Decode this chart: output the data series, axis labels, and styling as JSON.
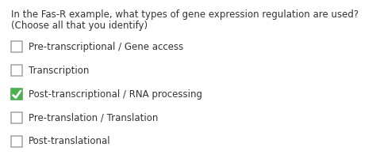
{
  "background_color": "#ffffff",
  "question_line1": "In the Fas-R example, what types of gene expression regulation are used?",
  "question_line2": "(Choose all that you identify)",
  "options": [
    {
      "label": "Pre-transcriptional / Gene access",
      "checked": false
    },
    {
      "label": "Transcription",
      "checked": false
    },
    {
      "label": "Post-transcriptional / RNA processing",
      "checked": true
    },
    {
      "label": "Pre-translation / Translation",
      "checked": false
    },
    {
      "label": "Post-translational",
      "checked": false
    }
  ],
  "checkbox_color_unchecked": "#ffffff",
  "checkbox_border_unchecked": "#aaaaaa",
  "checkbox_color_checked": "#4caf50",
  "checkbox_border_checked": "#4caf50",
  "checkmark_color": "#ffffff",
  "text_color": "#333333",
  "question_fontsize": 8.5,
  "option_fontsize": 8.5,
  "fig_width": 4.74,
  "fig_height": 2.1,
  "dpi": 100
}
